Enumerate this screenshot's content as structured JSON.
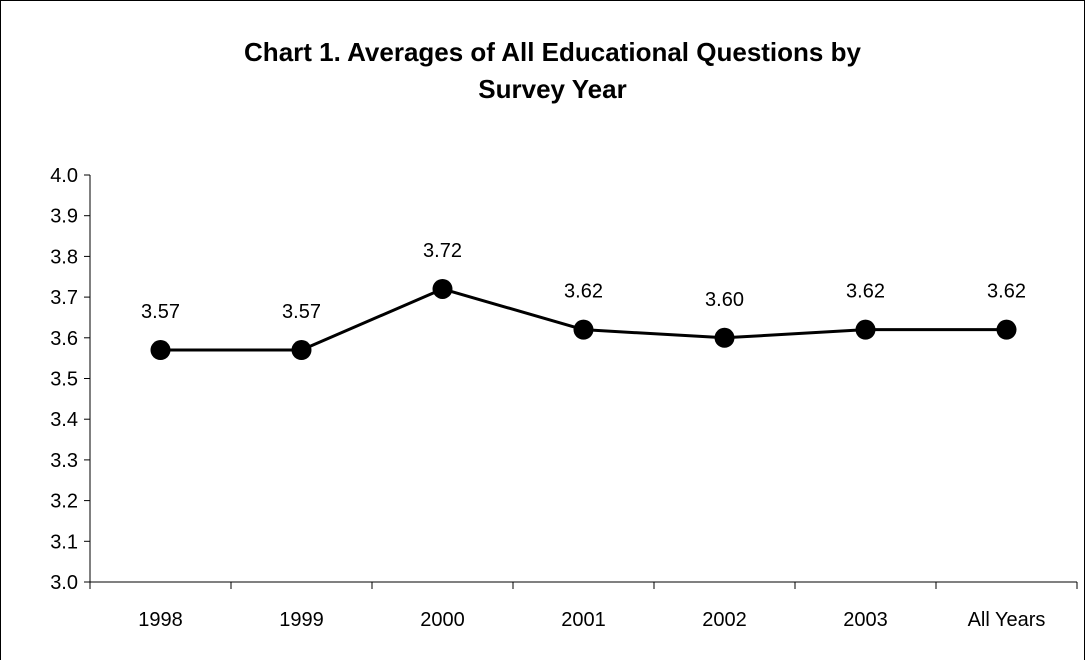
{
  "chart_data": {
    "type": "line",
    "title": "Chart 1.  Averages of All Educational Questions by Survey Year",
    "title_lines": [
      "Chart 1.  Averages of All Educational Questions by",
      "Survey Year"
    ],
    "categories": [
      "1998",
      "1999",
      "2000",
      "2001",
      "2002",
      "2003",
      "All Years"
    ],
    "values": [
      3.57,
      3.57,
      3.72,
      3.62,
      3.6,
      3.62,
      3.62
    ],
    "data_labels": [
      "3.57",
      "3.57",
      "3.72",
      "3.62",
      "3.60",
      "3.62",
      "3.62"
    ],
    "xlabel": "",
    "ylabel": "",
    "ylim": [
      3.0,
      4.0
    ],
    "yticks": [
      "3.0",
      "3.1",
      "3.2",
      "3.3",
      "3.4",
      "3.5",
      "3.6",
      "3.7",
      "3.8",
      "3.9",
      "4.0"
    ],
    "grid": false,
    "legend": "none",
    "colors": {
      "line": "#000000",
      "marker": "#000000",
      "axis": "#000000",
      "background": "#ffffff"
    }
  }
}
